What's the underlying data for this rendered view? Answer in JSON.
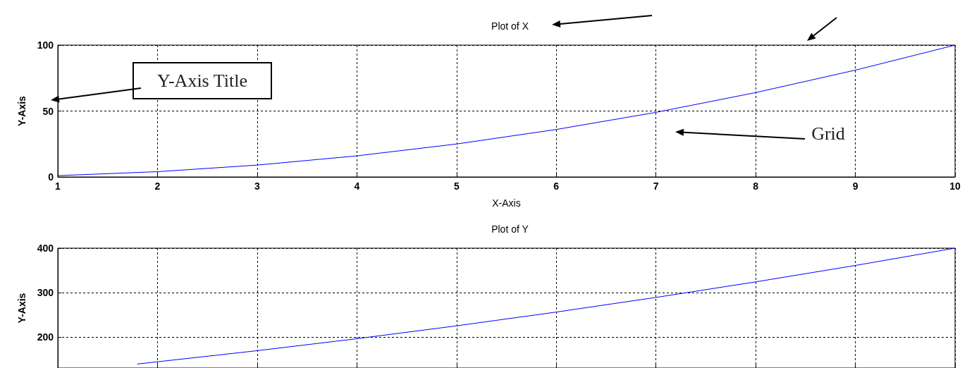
{
  "chart_data": [
    {
      "type": "line",
      "title": "Plot of X",
      "xlabel": "X-Axis",
      "ylabel": "Y-Axis",
      "x": [
        1,
        2,
        3,
        4,
        5,
        6,
        7,
        8,
        9,
        10
      ],
      "series": [
        {
          "color": "#0000ff",
          "values": [
            1,
            4,
            9,
            16,
            25,
            36,
            49,
            64,
            81,
            100
          ]
        }
      ],
      "xlim": [
        1,
        10
      ],
      "xticks": [
        1,
        2,
        3,
        4,
        5,
        6,
        7,
        8,
        9,
        10
      ],
      "ylim": [
        0,
        100
      ],
      "yticks": [
        0,
        50,
        100
      ],
      "grid": true,
      "line_style": "solid",
      "annotations": [
        "Y-Axis Title",
        "Grid"
      ]
    },
    {
      "type": "line",
      "title": "Plot of Y",
      "ylabel": "Y-Axis",
      "x": [
        1.8,
        2,
        3,
        4,
        5,
        6,
        7,
        8,
        9,
        10
      ],
      "series": [
        {
          "color": "#0000ff",
          "values": [
            139,
            144,
            169,
            196,
            225,
            256,
            289,
            324,
            361,
            400
          ]
        }
      ],
      "xlim": [
        1,
        10
      ],
      "xticks": [
        1,
        2,
        3,
        4,
        5,
        6,
        7,
        8,
        9,
        10
      ],
      "ylim": [
        130,
        400
      ],
      "yticks": [
        200,
        300,
        400
      ],
      "grid": true,
      "line_style": "solid",
      "tick_labels": "y"
    }
  ]
}
